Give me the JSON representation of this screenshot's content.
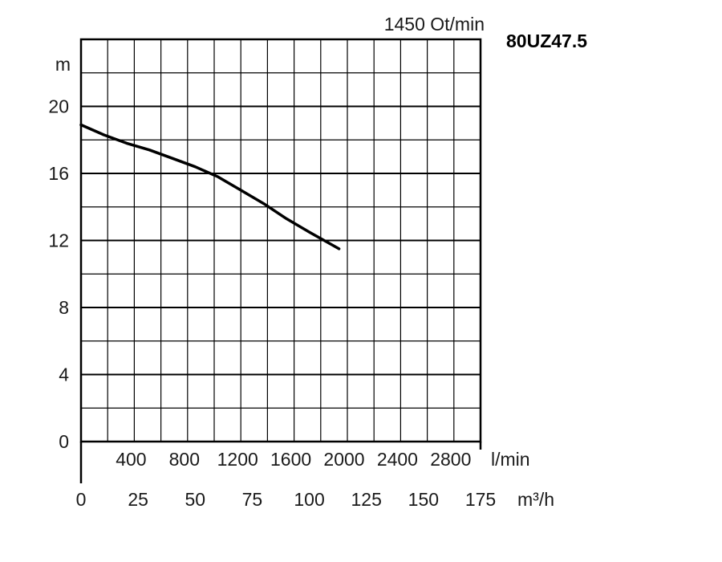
{
  "chart_data": {
    "type": "line",
    "speed_label": "1450 Ot/min",
    "model": "80UZ47.5",
    "ylabel": "m",
    "ylim": [
      0,
      24
    ],
    "y_ticks": [
      "0",
      "4",
      "8",
      "12",
      "16",
      "20"
    ],
    "x_lmin_label": "l/min",
    "x_lmin_ticks": [
      "400",
      "800",
      "1200",
      "1600",
      "2000",
      "2400",
      "2800"
    ],
    "x_m3h_label": "m³/h",
    "x_m3h_ticks": [
      "0",
      "25",
      "50",
      "75",
      "100",
      "125",
      "150",
      "175"
    ],
    "xlim_m3h": [
      0,
      175
    ],
    "grid": true,
    "series": [
      {
        "x": [
          0,
          10,
          20,
          30,
          40,
          50,
          60,
          70,
          80,
          90,
          100,
          113
        ],
        "y": [
          18.9,
          18.3,
          17.8,
          17.4,
          16.9,
          16.4,
          15.8,
          15.0,
          14.2,
          13.3,
          12.5,
          11.5
        ]
      }
    ]
  }
}
